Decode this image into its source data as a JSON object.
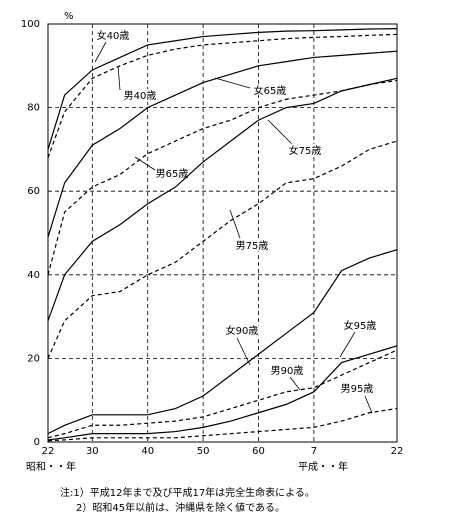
{
  "chart_data": {
    "type": "line",
    "y_unit": "%",
    "x_era_labels": [
      "昭和・・年",
      "平成・・年"
    ],
    "notes": [
      "注:1）平成12年まで及び平成17年は完全生命表による。",
      "2）昭和45年以前は、沖縄県を除く値である。"
    ],
    "x": [
      1947,
      1950,
      1955,
      1960,
      1965,
      1970,
      1975,
      1980,
      1985,
      1990,
      1995,
      2000,
      2005,
      2010
    ],
    "xlim": [
      1947,
      2010
    ],
    "xticks": [
      {
        "value": 1947,
        "label": "22"
      },
      {
        "value": 1955,
        "label": "30"
      },
      {
        "value": 1965,
        "label": "40"
      },
      {
        "value": 1975,
        "label": "50"
      },
      {
        "value": 1985,
        "label": "60"
      },
      {
        "value": 1995,
        "label": "7"
      },
      {
        "value": 2010,
        "label": "22"
      }
    ],
    "ylim": [
      0,
      100
    ],
    "yticks": [
      0,
      20,
      40,
      60,
      80,
      100
    ],
    "grid": true,
    "series": [
      {
        "name": "女40歳",
        "color": "#000000",
        "line_style": "solid",
        "values": [
          70,
          83,
          89,
          92,
          95,
          96,
          97,
          97.5,
          98,
          98.3,
          98.4,
          98.6,
          98.8,
          98.9
        ]
      },
      {
        "name": "男40歳",
        "color": "#000000",
        "line_style": "dashed",
        "values": [
          68,
          79,
          87,
          90,
          92.5,
          94,
          95,
          95.5,
          96,
          96.5,
          96.8,
          97,
          97.3,
          97.5
        ]
      },
      {
        "name": "女65歳",
        "color": "#000000",
        "line_style": "solid",
        "values": [
          49,
          62,
          71,
          75,
          80,
          83,
          86,
          88,
          90,
          91,
          92,
          92.5,
          93,
          93.5
        ]
      },
      {
        "name": "男65歳",
        "color": "#000000",
        "line_style": "dashed",
        "values": [
          40,
          55,
          61,
          64,
          69,
          72,
          75,
          77,
          80,
          82,
          83,
          84,
          85.5,
          86.5
        ]
      },
      {
        "name": "女75歳",
        "color": "#000000",
        "line_style": "solid",
        "values": [
          29,
          40,
          48,
          52,
          57,
          61,
          67,
          72,
          77,
          80,
          81,
          84,
          85.5,
          87
        ]
      },
      {
        "name": "男75歳",
        "color": "#000000",
        "line_style": "dashed",
        "values": [
          20,
          29,
          35,
          36,
          40,
          43,
          48,
          53,
          57,
          62,
          63,
          66,
          70,
          72
        ]
      },
      {
        "name": "女90歳",
        "color": "#000000",
        "line_style": "solid",
        "values": [
          2,
          4,
          6.5,
          6.5,
          6.5,
          8,
          11,
          16,
          21,
          26,
          31,
          41,
          44,
          46
        ]
      },
      {
        "name": "男90歳",
        "color": "#000000",
        "line_style": "dashed",
        "values": [
          1,
          2,
          4,
          4,
          4.5,
          5,
          6,
          8,
          10,
          12,
          13,
          16,
          19,
          22
        ]
      },
      {
        "name": "女95歳",
        "color": "#000000",
        "line_style": "solid",
        "values": [
          0.5,
          1,
          2,
          2,
          2,
          2.5,
          3.5,
          5,
          7,
          9,
          12,
          19,
          21,
          23
        ]
      },
      {
        "name": "男95歳",
        "color": "#000000",
        "line_style": "dashed",
        "values": [
          0.3,
          0.5,
          1,
          1,
          1,
          1,
          1.5,
          2,
          2.5,
          3,
          3.5,
          5,
          7,
          8
        ]
      }
    ]
  }
}
